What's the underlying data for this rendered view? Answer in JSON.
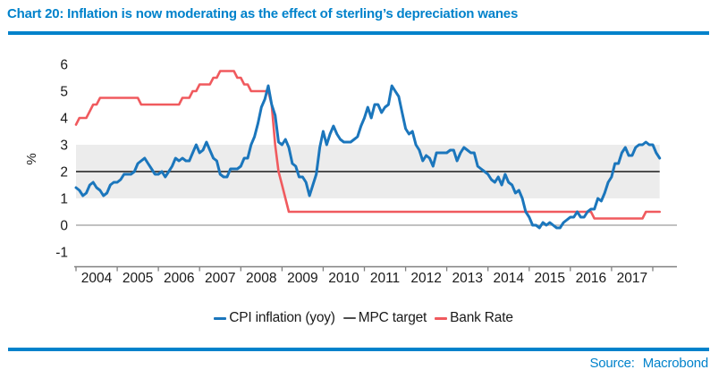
{
  "title": "Chart 20: Inflation is now moderating as the effect of sterling’s depreciation wanes",
  "footer": {
    "source_label": "Source:",
    "source_value": "Macrobond"
  },
  "colors": {
    "accent_blue": "#0082CB",
    "cpi_line": "#1B76BC",
    "bank_rate_line": "#F05A5E",
    "mpc_target_line": "#4D4D4D",
    "target_band_fill": "#ECECEC",
    "zero_line": "#9C9C9C",
    "axis": "#808080",
    "text": "#1A1A1A"
  },
  "chart_data": {
    "type": "line",
    "title": "Chart 20: Inflation is now moderating as the effect of sterling’s depreciation wanes",
    "xlabel": "",
    "ylabel": "%",
    "ylim": [
      -1,
      6
    ],
    "y_ticks": [
      6,
      5,
      4,
      3,
      2,
      1,
      0,
      -1
    ],
    "x_tick_years": [
      2004,
      2005,
      2006,
      2007,
      2008,
      2009,
      2010,
      2011,
      2012,
      2013,
      2014,
      2015,
      2016,
      2017
    ],
    "x_start": "2004-01",
    "x_end": "2018-03",
    "frequency": "monthly",
    "grid": "zero line and MPC target line only",
    "target_band": [
      1,
      3
    ],
    "legend_position": "bottom-center",
    "series": [
      {
        "name": "CPI inflation (yoy)",
        "color": "#1B76BC",
        "values": [
          1.4,
          1.3,
          1.1,
          1.2,
          1.5,
          1.6,
          1.4,
          1.3,
          1.1,
          1.2,
          1.5,
          1.6,
          1.6,
          1.7,
          1.9,
          1.9,
          1.9,
          2.0,
          2.3,
          2.4,
          2.5,
          2.3,
          2.1,
          1.9,
          1.9,
          2.0,
          1.8,
          2.0,
          2.2,
          2.5,
          2.4,
          2.5,
          2.4,
          2.4,
          2.7,
          3.0,
          2.7,
          2.8,
          3.1,
          2.8,
          2.5,
          2.4,
          1.9,
          1.8,
          1.8,
          2.1,
          2.1,
          2.1,
          2.2,
          2.5,
          2.5,
          3.0,
          3.3,
          3.8,
          4.4,
          4.7,
          5.2,
          4.5,
          4.1,
          3.1,
          3.0,
          3.2,
          2.9,
          2.3,
          2.2,
          1.8,
          1.8,
          1.6,
          1.1,
          1.5,
          1.9,
          2.9,
          3.5,
          3.0,
          3.4,
          3.7,
          3.4,
          3.2,
          3.1,
          3.1,
          3.1,
          3.2,
          3.3,
          3.7,
          4.0,
          4.4,
          4.0,
          4.5,
          4.5,
          4.2,
          4.4,
          4.5,
          5.2,
          5.0,
          4.8,
          4.2,
          3.6,
          3.4,
          3.5,
          3.0,
          2.8,
          2.4,
          2.6,
          2.5,
          2.2,
          2.7,
          2.7,
          2.7,
          2.7,
          2.8,
          2.8,
          2.4,
          2.7,
          2.9,
          2.8,
          2.7,
          2.7,
          2.2,
          2.1,
          2.0,
          1.9,
          1.7,
          1.6,
          1.8,
          1.5,
          1.9,
          1.6,
          1.5,
          1.2,
          1.3,
          1.0,
          0.5,
          0.3,
          0.0,
          0.0,
          -0.1,
          0.1,
          0.0,
          0.1,
          0.0,
          -0.1,
          -0.1,
          0.1,
          0.2,
          0.3,
          0.3,
          0.5,
          0.3,
          0.3,
          0.5,
          0.6,
          0.6,
          1.0,
          0.9,
          1.2,
          1.6,
          1.8,
          2.3,
          2.3,
          2.7,
          2.9,
          2.6,
          2.6,
          2.9,
          3.0,
          3.0,
          3.1,
          3.0,
          3.0,
          2.7,
          2.5
        ]
      },
      {
        "name": "MPC target",
        "color": "#4D4D4D",
        "type": "constant",
        "value": 2
      },
      {
        "name": "Bank Rate",
        "color": "#F05A5E",
        "values": [
          3.75,
          4.0,
          4.0,
          4.0,
          4.25,
          4.5,
          4.5,
          4.75,
          4.75,
          4.75,
          4.75,
          4.75,
          4.75,
          4.75,
          4.75,
          4.75,
          4.75,
          4.75,
          4.75,
          4.5,
          4.5,
          4.5,
          4.5,
          4.5,
          4.5,
          4.5,
          4.5,
          4.5,
          4.5,
          4.5,
          4.5,
          4.75,
          4.75,
          4.75,
          5.0,
          5.0,
          5.25,
          5.25,
          5.25,
          5.25,
          5.5,
          5.5,
          5.75,
          5.75,
          5.75,
          5.75,
          5.75,
          5.5,
          5.5,
          5.25,
          5.25,
          5.0,
          5.0,
          5.0,
          5.0,
          5.0,
          5.0,
          4.5,
          3.0,
          2.0,
          1.5,
          1.0,
          0.5,
          0.5,
          0.5,
          0.5,
          0.5,
          0.5,
          0.5,
          0.5,
          0.5,
          0.5,
          0.5,
          0.5,
          0.5,
          0.5,
          0.5,
          0.5,
          0.5,
          0.5,
          0.5,
          0.5,
          0.5,
          0.5,
          0.5,
          0.5,
          0.5,
          0.5,
          0.5,
          0.5,
          0.5,
          0.5,
          0.5,
          0.5,
          0.5,
          0.5,
          0.5,
          0.5,
          0.5,
          0.5,
          0.5,
          0.5,
          0.5,
          0.5,
          0.5,
          0.5,
          0.5,
          0.5,
          0.5,
          0.5,
          0.5,
          0.5,
          0.5,
          0.5,
          0.5,
          0.5,
          0.5,
          0.5,
          0.5,
          0.5,
          0.5,
          0.5,
          0.5,
          0.5,
          0.5,
          0.5,
          0.5,
          0.5,
          0.5,
          0.5,
          0.5,
          0.5,
          0.5,
          0.5,
          0.5,
          0.5,
          0.5,
          0.5,
          0.5,
          0.5,
          0.5,
          0.5,
          0.5,
          0.5,
          0.5,
          0.5,
          0.5,
          0.5,
          0.5,
          0.5,
          0.5,
          0.25,
          0.25,
          0.25,
          0.25,
          0.25,
          0.25,
          0.25,
          0.25,
          0.25,
          0.25,
          0.25,
          0.25,
          0.25,
          0.25,
          0.25,
          0.5,
          0.5,
          0.5,
          0.5,
          0.5
        ]
      }
    ]
  }
}
